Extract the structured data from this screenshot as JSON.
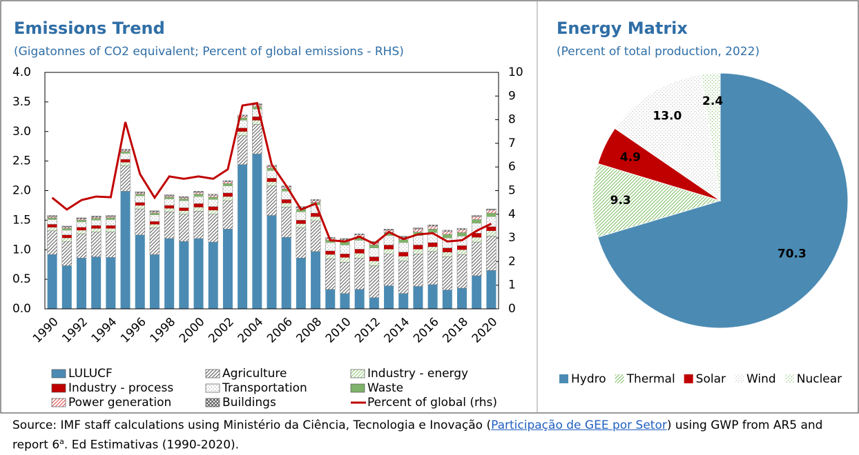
{
  "chart_data": [
    {
      "type": "bar",
      "title": "Emissions Trend",
      "subtitle": "(Gigatonnes of CO2 equivalent; Percent of global emissions - RHS)",
      "categories": [
        "1990",
        null,
        "1992",
        null,
        "1994",
        null,
        "1996",
        null,
        "1998",
        null,
        "2000",
        null,
        "2002",
        null,
        "2004",
        null,
        "2006",
        null,
        "2008",
        null,
        "2010",
        null,
        "2012",
        null,
        "2014",
        null,
        "2016",
        null,
        "2018",
        null,
        "2020"
      ],
      "ylim": [
        0,
        4
      ],
      "yticks": [
        {
          "value": 0,
          "label": "0.0"
        },
        0.5,
        {
          "value": 1,
          "label": "1.0"
        },
        1.5,
        {
          "value": 2,
          "label": "2.0"
        },
        2.5,
        {
          "value": 3,
          "label": "3.0"
        },
        3.5,
        {
          "value": 4,
          "label": "4.0"
        }
      ],
      "y2lim": [
        0,
        10
      ],
      "y2ticks": [
        0,
        1,
        2,
        3,
        4,
        5,
        6,
        7,
        8,
        9,
        10
      ],
      "series": [
        {
          "name": "LULUCF",
          "color": "#4b8bb3",
          "pattern": "solid",
          "values": [
            0.92,
            0.73,
            0.86,
            0.88,
            0.87,
            1.99,
            1.25,
            0.92,
            1.19,
            1.14,
            1.19,
            1.13,
            1.35,
            2.44,
            2.62,
            1.58,
            1.21,
            0.86,
            0.97,
            0.33,
            0.26,
            0.33,
            0.19,
            0.39,
            0.26,
            0.38,
            0.41,
            0.32,
            0.35,
            0.56,
            0.65
          ]
        },
        {
          "name": "Agriculture",
          "color": "#6e6e6e",
          "pattern": "hatch",
          "values": [
            0.4,
            0.41,
            0.41,
            0.42,
            0.43,
            0.43,
            0.44,
            0.45,
            0.45,
            0.46,
            0.46,
            0.47,
            0.48,
            0.49,
            0.5,
            0.5,
            0.51,
            0.51,
            0.52,
            0.52,
            0.53,
            0.53,
            0.54,
            0.54,
            0.55,
            0.55,
            0.56,
            0.56,
            0.57,
            0.57,
            0.58
          ]
        },
        {
          "name": "Industry - energy",
          "color": "#9fcf86",
          "pattern": "hatch",
          "values": [
            0.06,
            0.06,
            0.06,
            0.06,
            0.06,
            0.06,
            0.06,
            0.06,
            0.06,
            0.06,
            0.07,
            0.07,
            0.07,
            0.07,
            0.07,
            0.07,
            0.07,
            0.07,
            0.07,
            0.07,
            0.08,
            0.08,
            0.08,
            0.08,
            0.08,
            0.08,
            0.08,
            0.08,
            0.08,
            0.08,
            0.09
          ]
        },
        {
          "name": "Industry - process",
          "color": "#c00000",
          "pattern": "solid",
          "values": [
            0.05,
            0.05,
            0.05,
            0.05,
            0.05,
            0.05,
            0.05,
            0.05,
            0.05,
            0.05,
            0.06,
            0.06,
            0.06,
            0.06,
            0.06,
            0.06,
            0.06,
            0.06,
            0.06,
            0.06,
            0.06,
            0.07,
            0.07,
            0.07,
            0.07,
            0.07,
            0.07,
            0.07,
            0.07,
            0.07,
            0.07
          ]
        },
        {
          "name": "Transportation",
          "color": "#b0b0b0",
          "pattern": "dots",
          "values": [
            0.08,
            0.08,
            0.09,
            0.09,
            0.1,
            0.1,
            0.11,
            0.11,
            0.11,
            0.12,
            0.12,
            0.12,
            0.12,
            0.13,
            0.13,
            0.13,
            0.14,
            0.14,
            0.14,
            0.14,
            0.15,
            0.15,
            0.15,
            0.16,
            0.16,
            0.16,
            0.17,
            0.17,
            0.16,
            0.17,
            0.17
          ]
        },
        {
          "name": "Waste",
          "color": "#7fb26a",
          "pattern": "solid",
          "values": [
            0.03,
            0.03,
            0.03,
            0.03,
            0.03,
            0.03,
            0.03,
            0.03,
            0.03,
            0.03,
            0.04,
            0.04,
            0.04,
            0.04,
            0.04,
            0.04,
            0.04,
            0.04,
            0.04,
            0.04,
            0.05,
            0.05,
            0.05,
            0.05,
            0.05,
            0.06,
            0.06,
            0.06,
            0.06,
            0.06,
            0.06
          ]
        },
        {
          "name": "Power generation",
          "color": "#e06060",
          "pattern": "hatch",
          "values": [
            0.02,
            0.02,
            0.02,
            0.02,
            0.02,
            0.02,
            0.02,
            0.02,
            0.02,
            0.02,
            0.03,
            0.03,
            0.03,
            0.03,
            0.03,
            0.03,
            0.03,
            0.03,
            0.03,
            0.03,
            0.04,
            0.04,
            0.04,
            0.04,
            0.04,
            0.05,
            0.05,
            0.05,
            0.05,
            0.05,
            0.05
          ]
        },
        {
          "name": "Buildings",
          "color": "#555555",
          "pattern": "cross",
          "values": [
            0.02,
            0.02,
            0.02,
            0.02,
            0.02,
            0.02,
            0.02,
            0.02,
            0.02,
            0.02,
            0.02,
            0.02,
            0.02,
            0.02,
            0.02,
            0.02,
            0.02,
            0.02,
            0.02,
            0.02,
            0.02,
            0.02,
            0.02,
            0.02,
            0.02,
            0.02,
            0.02,
            0.02,
            0.02,
            0.02,
            0.02
          ]
        },
        {
          "name": "Percent of global (rhs)",
          "color": "#c00000",
          "type": "line",
          "axis": "y2",
          "values": [
            4.7,
            4.2,
            4.6,
            4.75,
            4.72,
            7.9,
            5.7,
            4.7,
            5.6,
            5.5,
            5.6,
            5.5,
            5.9,
            8.6,
            8.7,
            6.1,
            5.2,
            4.2,
            4.45,
            2.9,
            2.85,
            3.05,
            2.75,
            3.25,
            2.95,
            3.15,
            3.2,
            2.85,
            2.9,
            3.3,
            3.6
          ]
        }
      ]
    },
    {
      "type": "pie",
      "title": "Energy Matrix",
      "subtitle": "(Percent of total production, 2022)",
      "categories": [
        "Hydro",
        "Thermal",
        "Solar",
        "Wind",
        "Nuclear"
      ],
      "values": [
        70.3,
        9.3,
        4.9,
        13.0,
        2.4
      ],
      "value_labels": [
        "70.3",
        "9.3",
        "4.9",
        "13.0",
        "2.4"
      ],
      "colors": [
        "#4b8bb3",
        "#8cc474",
        "#c00000",
        "#c8c8c8",
        "#8cc474"
      ],
      "patterns": [
        "solid",
        "hatch",
        "solid",
        "dots",
        "dots"
      ]
    }
  ],
  "source": {
    "before": "Source: IMF staff calculations using Ministério da Ciência, Tecnologia e Inovação (",
    "link": "Participação de GEE por Setor",
    "after": ") using GWP from AR5 and report 6",
    "sup": "a",
    "end": ". Ed Estimativas (1990-2020)."
  }
}
